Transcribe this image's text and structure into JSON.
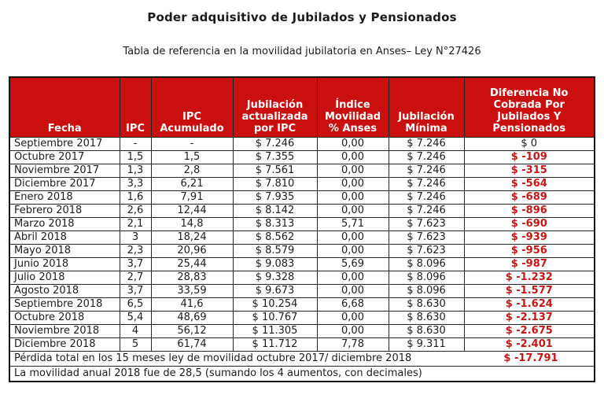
{
  "title": "Poder adquisitivo de Jubilados y Pensionados",
  "subtitle": "Tabla de referencia en la movilidad jubilatoria en Anses– Ley N°27426",
  "colors": {
    "header_bg": "#c9100e",
    "header_text": "#ffffff",
    "negative_text": "#c41616",
    "border": "#252525",
    "body_text": "#1c1c1c"
  },
  "chart_data": {
    "type": "table",
    "title": "Poder adquisitivo de Jubilados y Pensionados",
    "subtitle": "Tabla de referencia en la movilidad jubilatoria en Anses– Ley N°27426",
    "columns": [
      "Fecha",
      "IPC",
      "IPC Acumulado",
      "Jubilación actualizada por IPC",
      "Índice Movilidad % Anses",
      "Jubilación Mínima",
      "Diferencia No Cobrada Por Jubilados Y Pensionados"
    ],
    "columns_display": [
      "Fecha",
      "IPC",
      "IPC\nAcumulado",
      "Jubilación\nactualizada\npor IPC",
      "Índice\nMovilidad\n% Anses",
      "Jubilación\nMínima",
      "Diferencia No\nCobrada Por\nJubilados Y\nPensionados"
    ],
    "rows": [
      [
        "Septiembre 2017",
        "-",
        "-",
        "$ 7.246",
        "0,00",
        "$ 7.246",
        "$ 0"
      ],
      [
        "Octubre 2017",
        "1,5",
        "1,5",
        "$ 7.355",
        "0,00",
        "$ 7.246",
        "$ -109"
      ],
      [
        "Noviembre 2017",
        "1,3",
        "2,8",
        "$ 7.561",
        "0,00",
        "$ 7.246",
        "$ -315"
      ],
      [
        "Diciembre 2017",
        "3,3",
        "6,21",
        "$ 7.810",
        "0,00",
        "$ 7.246",
        "$ -564"
      ],
      [
        "Enero 2018",
        "1,6",
        "7,91",
        "$ 7.935",
        "0,00",
        "$ 7.246",
        "$ -689"
      ],
      [
        "Febrero 2018",
        "2,6",
        "12,44",
        "$ 8.142",
        "0,00",
        "$ 7.246",
        "$ -896"
      ],
      [
        "Marzo 2018",
        "2,1",
        "14,8",
        "$ 8.313",
        "5,71",
        "$ 7.623",
        "$ -690"
      ],
      [
        "Abril 2018",
        "3",
        "18,24",
        "$ 8.562",
        "0,00",
        "$ 7.623",
        "$ -939"
      ],
      [
        "Mayo 2018",
        "2,3",
        "20,96",
        "$ 8.579",
        "0,00",
        "$ 7.623",
        "$ -956"
      ],
      [
        "Junio 2018",
        "3,7",
        "25,44",
        "$ 9.083",
        "5,69",
        "$ 8.096",
        "$ -987"
      ],
      [
        "Julio 2018",
        "2,7",
        "28,83",
        "$ 9.328",
        "0,00",
        "$ 8.096",
        "$ -1.232"
      ],
      [
        "Agosto 2018",
        "3,7",
        "33,59",
        "$ 9.673",
        "0,00",
        "$ 8.096",
        "$ -1.577"
      ],
      [
        "Septiembre 2018",
        "6,5",
        "41,6",
        "$ 10.254",
        "6,68",
        "$ 8.630",
        "$ -1.624"
      ],
      [
        "Octubre 2018",
        "5,4",
        "48,69",
        "$ 10.767",
        "0,00",
        "$ 8.630",
        "$ -2.137"
      ],
      [
        "Noviembre 2018",
        "4",
        "56,12",
        "$ 11.305",
        "0,00",
        "$ 8.630",
        "$ -2.675"
      ],
      [
        "Diciembre 2018",
        "5",
        "61,74",
        "$ 11.712",
        "7,78",
        "$ 9.311",
        "$ -2.401"
      ]
    ],
    "summary_rows": [
      {
        "label": "Pérdida total en los 15 meses ley de movilidad octubre 2017/ diciembre 2018",
        "value": "$ -17.791"
      },
      {
        "label": "La movilidad anual  2018 fue de 28,5 (sumando los 4 aumentos, con decimales)",
        "value": ""
      }
    ]
  }
}
